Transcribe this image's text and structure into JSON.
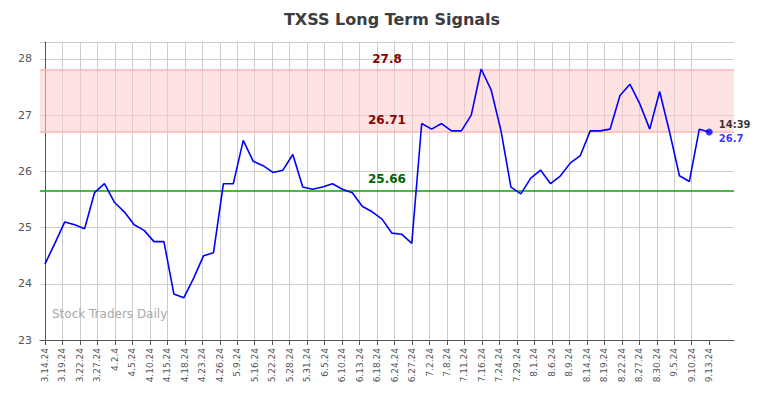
{
  "chart_data": {
    "type": "line",
    "title": "TXSS Long Term Signals",
    "watermark": "Stock Traders Daily",
    "color": "blue",
    "grid": true,
    "x": [
      0,
      1,
      2,
      3,
      4,
      5,
      6,
      7,
      8,
      9,
      10,
      11,
      12,
      13,
      14,
      15,
      16,
      17,
      18,
      19,
      20,
      21,
      22,
      23,
      24,
      25,
      26,
      27,
      28,
      29,
      30,
      31,
      32,
      33,
      34,
      35,
      36,
      37,
      38,
      39,
      40,
      41,
      42,
      43,
      44,
      45,
      46,
      47,
      48,
      49,
      50,
      51,
      52,
      53,
      54,
      55,
      56,
      57,
      58,
      59,
      60,
      61,
      62,
      63,
      64,
      65,
      66,
      67
    ],
    "values": [
      24.35,
      24.72,
      25.1,
      25.05,
      24.98,
      25.62,
      25.78,
      25.45,
      25.28,
      25.05,
      24.95,
      24.75,
      24.75,
      23.82,
      23.75,
      24.1,
      24.5,
      24.55,
      25.78,
      25.78,
      26.55,
      26.18,
      26.1,
      25.98,
      26.02,
      26.3,
      25.72,
      25.68,
      25.72,
      25.78,
      25.68,
      25.62,
      25.38,
      25.28,
      25.15,
      24.9,
      24.88,
      24.72,
      26.85,
      26.75,
      26.85,
      26.72,
      26.72,
      27.0,
      27.82,
      27.45,
      26.72,
      25.72,
      25.6,
      25.88,
      26.02,
      25.78,
      25.92,
      26.15,
      26.28,
      26.72,
      26.72,
      26.75,
      27.35,
      27.55,
      27.2,
      26.75,
      27.42,
      26.7,
      25.92,
      25.82,
      26.75,
      26.7
    ],
    "xlim": [
      -0.5,
      69.5
    ],
    "xticks": [
      {
        "value": 0,
        "label": "3.14.24"
      },
      {
        "value": 1.763158,
        "label": "3.19.24"
      },
      {
        "value": 3.526316,
        "label": "3.22.24"
      },
      {
        "value": 5.289474,
        "label": "3.27.24"
      },
      {
        "value": 7.052632,
        "label": "4.2.4"
      },
      {
        "value": 8.815789,
        "label": "4.5.24"
      },
      {
        "value": 10.578947,
        "label": "4.10.24"
      },
      {
        "value": 12.342105,
        "label": "4.15.24"
      },
      {
        "value": 14.105263,
        "label": "4.18.24"
      },
      {
        "value": 15.868421,
        "label": "4.23.24"
      },
      {
        "value": 17.631579,
        "label": "4.26.24"
      },
      {
        "value": 19.394737,
        "label": "5.9.24"
      },
      {
        "value": 21.157895,
        "label": "5.16.24"
      },
      {
        "value": 22.921053,
        "label": "5.22.24"
      },
      {
        "value": 24.684211,
        "label": "5.28.24"
      },
      {
        "value": 26.447368,
        "label": "5.31.24"
      },
      {
        "value": 28.210526,
        "label": "6.5.24"
      },
      {
        "value": 29.973684,
        "label": "6.10.24"
      },
      {
        "value": 31.736842,
        "label": "6.13.24"
      },
      {
        "value": 33.5,
        "label": "6.18.24"
      },
      {
        "value": 35.263158,
        "label": "6.24.24"
      },
      {
        "value": 37.026316,
        "label": "6.27.24"
      },
      {
        "value": 38.789474,
        "label": "7.2.24"
      },
      {
        "value": 40.552632,
        "label": "7.8.24"
      },
      {
        "value": 42.315789,
        "label": "7.11.24"
      },
      {
        "value": 44.078947,
        "label": "7.16.24"
      },
      {
        "value": 45.842105,
        "label": "7.24.24"
      },
      {
        "value": 47.605263,
        "label": "7.29.24"
      },
      {
        "value": 49.368421,
        "label": "8.1.24"
      },
      {
        "value": 51.131579,
        "label": "8.6.24"
      },
      {
        "value": 52.894737,
        "label": "8.9.24"
      },
      {
        "value": 54.657895,
        "label": "8.14.24"
      },
      {
        "value": 56.421053,
        "label": "8.19.24"
      },
      {
        "value": 58.184211,
        "label": "8.22.24"
      },
      {
        "value": 59.947368,
        "label": "8.27.24"
      },
      {
        "value": 61.710526,
        "label": "8.30.24"
      },
      {
        "value": 63.473684,
        "label": "9.5.24"
      },
      {
        "value": 65.236842,
        "label": "9.10.24"
      },
      {
        "value": 67,
        "label": "9.13.24"
      }
    ],
    "ylim": [
      23.0,
      28.3
    ],
    "yticks": [
      23,
      24,
      25,
      26,
      27,
      28
    ],
    "band": {
      "from": 26.71,
      "to": 27.8,
      "color": "#ffcccc"
    },
    "hlines": [
      {
        "value": 27.8,
        "label": "27.8",
        "color": "#ffb3b3",
        "label_color": "darkred"
      },
      {
        "value": 26.71,
        "label": "26.71",
        "color": "#ffb3b3",
        "label_color": "darkred"
      },
      {
        "value": 25.66,
        "label": "25.66",
        "color": "#00aa00",
        "label_color": "darkgreen"
      }
    ],
    "annotations": [
      {
        "text": "14:39",
        "x": 67,
        "y": 26.7,
        "color": "black"
      },
      {
        "text": "26.7",
        "x": 67,
        "y": 26.7,
        "color": "blue"
      }
    ]
  }
}
